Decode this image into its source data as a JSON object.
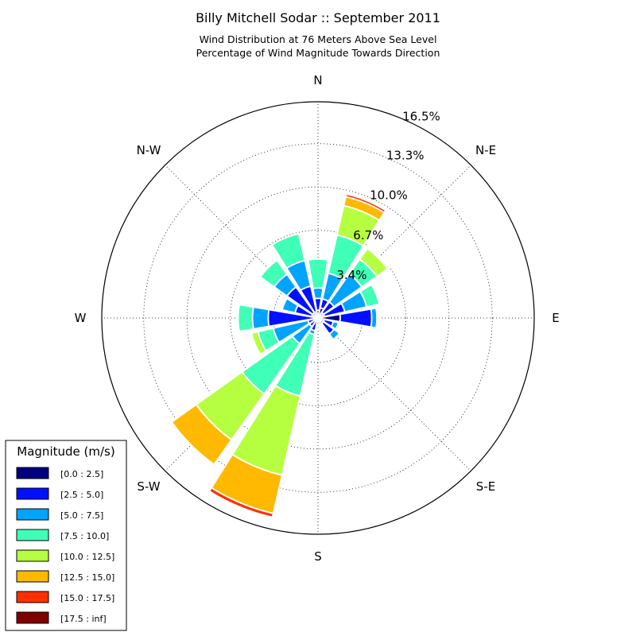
{
  "chart_data": {
    "type": "windrose",
    "title": "Billy Mitchell Sodar :: September 2011",
    "subtitle_lines": [
      "Wind Distribution at 76 Meters Above Sea Level",
      "Percentage of Wind Magnitude Towards Direction"
    ],
    "direction_labels": [
      "N",
      "N-E",
      "E",
      "S-E",
      "S",
      "S-W",
      "W",
      "N-W"
    ],
    "radial_ticks": [
      "3.4%",
      "6.7%",
      "10.0%",
      "13.3%",
      "16.5%"
    ],
    "radial_values": [
      3.4,
      6.7,
      10.0,
      13.3,
      16.5
    ],
    "rmax": 16.5,
    "grid": true,
    "legend": {
      "title": "Magnitude (m/s)",
      "placement": "bottom-left",
      "bins": [
        "[0.0 : 2.5]",
        "[2.5 : 5.0]",
        "[5.0 : 7.5]",
        "[7.5 : 10.0]",
        "[10.0 : 12.5]",
        "[12.5 : 15.0]",
        "[15.0 : 17.5]",
        "[17.5 : inf]"
      ],
      "colors": [
        "#000080",
        "#0010ff",
        "#00a4ff",
        "#40ffb6",
        "#b6ff40",
        "#ffb900",
        "#ff3000",
        "#800000"
      ]
    },
    "sectors": [
      {
        "direction_deg": 0.0,
        "cumulative": [
          0.6,
          1.5,
          2.3,
          4.5,
          4.5,
          4.5,
          4.5,
          4.5
        ]
      },
      {
        "direction_deg": 22.5,
        "cumulative": [
          0.8,
          1.5,
          3.5,
          6.5,
          8.8,
          9.5,
          9.7,
          9.7
        ]
      },
      {
        "direction_deg": 45.0,
        "cumulative": [
          0.5,
          1.5,
          4.1,
          5.5,
          6.5,
          6.6,
          6.7,
          6.7
        ]
      },
      {
        "direction_deg": 67.5,
        "cumulative": [
          0.5,
          2.1,
          3.8,
          4.8,
          4.8,
          4.8,
          4.8,
          4.8
        ]
      },
      {
        "direction_deg": 90.0,
        "cumulative": [
          1.7,
          4.1,
          4.5,
          4.6,
          4.6,
          4.6,
          4.6,
          4.6
        ]
      },
      {
        "direction_deg": 112.5,
        "cumulative": [
          0.5,
          1.2,
          1.6,
          1.7,
          1.7,
          1.7,
          1.7,
          1.7
        ]
      },
      {
        "direction_deg": 135.0,
        "cumulative": [
          0.5,
          1.5,
          2.0,
          2.0,
          2.0,
          2.0,
          2.0,
          2.0
        ]
      },
      {
        "direction_deg": 157.5,
        "cumulative": [
          0.3,
          0.5,
          0.6,
          0.6,
          0.6,
          0.6,
          0.6,
          0.6
        ]
      },
      {
        "direction_deg": 180.0,
        "cumulative": [
          0.3,
          0.5,
          0.6,
          0.7,
          0.7,
          0.7,
          0.7,
          0.7
        ]
      },
      {
        "direction_deg": 202.5,
        "cumulative": [
          0.3,
          1.0,
          1.3,
          6.1,
          12.3,
          15.3,
          15.6,
          15.6
        ]
      },
      {
        "direction_deg": 225.0,
        "cumulative": [
          0.3,
          0.8,
          2.4,
          7.1,
          11.4,
          13.7,
          13.7,
          13.7
        ]
      },
      {
        "direction_deg": 247.5,
        "cumulative": [
          0.3,
          0.8,
          3.5,
          4.7,
          5.2,
          5.2,
          5.2,
          5.2
        ]
      },
      {
        "direction_deg": 270.0,
        "cumulative": [
          0.3,
          3.8,
          5.0,
          6.1,
          6.2,
          6.2,
          6.2,
          6.2
        ]
      },
      {
        "direction_deg": 292.5,
        "cumulative": [
          0.5,
          1.8,
          2.8,
          2.8,
          2.8,
          2.8,
          2.8,
          2.8
        ]
      },
      {
        "direction_deg": 315.0,
        "cumulative": [
          0.5,
          2.9,
          4.1,
          5.4,
          5.4,
          5.4,
          5.4,
          5.4
        ]
      },
      {
        "direction_deg": 337.5,
        "cumulative": [
          0.5,
          2.5,
          4.5,
          6.6,
          6.6,
          6.6,
          6.6,
          6.6
        ]
      }
    ]
  }
}
